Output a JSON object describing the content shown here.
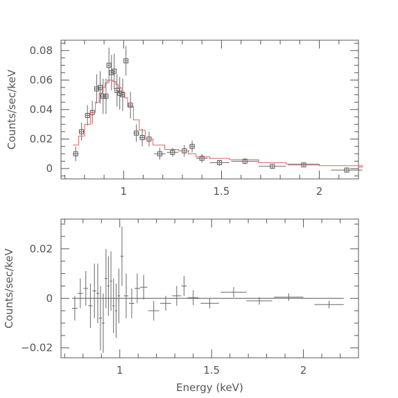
{
  "chart_data": [
    {
      "type": "scatter",
      "title": "",
      "xlabel": "",
      "ylabel": "Counts/sec/keV",
      "xlim": [
        0.68,
        2.2
      ],
      "ylim": [
        -0.007,
        0.087
      ],
      "x_major_ticks": [
        1,
        1.5,
        2
      ],
      "x_tick_labels": [
        "1",
        "1.5",
        "2"
      ],
      "y_major_ticks": [
        0,
        0.02,
        0.04,
        0.06,
        0.08
      ],
      "y_tick_labels": [
        "0",
        "0.02",
        "0.04",
        "0.06",
        "0.08"
      ],
      "grid": false,
      "model_color": "#e06060",
      "series": [
        {
          "marker": "square",
          "points": [
            {
              "x": 0.755,
              "y": 0.01,
              "xerr": 0.015,
              "yerr": 0.005
            },
            {
              "x": 0.785,
              "y": 0.025,
              "xerr": 0.015,
              "yerr": 0.006
            },
            {
              "x": 0.815,
              "y": 0.036,
              "xerr": 0.012,
              "yerr": 0.007
            },
            {
              "x": 0.84,
              "y": 0.038,
              "xerr": 0.012,
              "yerr": 0.008
            },
            {
              "x": 0.862,
              "y": 0.054,
              "xerr": 0.01,
              "yerr": 0.01
            },
            {
              "x": 0.88,
              "y": 0.055,
              "xerr": 0.008,
              "yerr": 0.011
            },
            {
              "x": 0.895,
              "y": 0.049,
              "xerr": 0.008,
              "yerr": 0.012
            },
            {
              "x": 0.91,
              "y": 0.049,
              "xerr": 0.007,
              "yerr": 0.012
            },
            {
              "x": 0.925,
              "y": 0.07,
              "xerr": 0.007,
              "yerr": 0.012
            },
            {
              "x": 0.938,
              "y": 0.065,
              "xerr": 0.006,
              "yerr": 0.012
            },
            {
              "x": 0.952,
              "y": 0.066,
              "xerr": 0.006,
              "yerr": 0.012
            },
            {
              "x": 0.966,
              "y": 0.053,
              "xerr": 0.006,
              "yerr": 0.011
            },
            {
              "x": 0.98,
              "y": 0.051,
              "xerr": 0.006,
              "yerr": 0.011
            },
            {
              "x": 0.995,
              "y": 0.05,
              "xerr": 0.007,
              "yerr": 0.011
            },
            {
              "x": 1.012,
              "y": 0.073,
              "xerr": 0.008,
              "yerr": 0.01
            },
            {
              "x": 1.035,
              "y": 0.043,
              "xerr": 0.012,
              "yerr": 0.009
            },
            {
              "x": 1.065,
              "y": 0.024,
              "xerr": 0.015,
              "yerr": 0.006
            },
            {
              "x": 1.095,
              "y": 0.021,
              "xerr": 0.015,
              "yerr": 0.006
            },
            {
              "x": 1.13,
              "y": 0.02,
              "xerr": 0.02,
              "yerr": 0.005
            },
            {
              "x": 1.185,
              "y": 0.01,
              "xerr": 0.03,
              "yerr": 0.004
            },
            {
              "x": 1.25,
              "y": 0.011,
              "xerr": 0.03,
              "yerr": 0.003
            },
            {
              "x": 1.31,
              "y": 0.012,
              "xerr": 0.025,
              "yerr": 0.004
            },
            {
              "x": 1.35,
              "y": 0.015,
              "xerr": 0.015,
              "yerr": 0.004
            },
            {
              "x": 1.4,
              "y": 0.007,
              "xerr": 0.03,
              "yerr": 0.003
            },
            {
              "x": 1.49,
              "y": 0.004,
              "xerr": 0.05,
              "yerr": 0.002
            },
            {
              "x": 1.62,
              "y": 0.005,
              "xerr": 0.07,
              "yerr": 0.002
            },
            {
              "x": 1.76,
              "y": 0.0015,
              "xerr": 0.07,
              "yerr": 0.0015
            },
            {
              "x": 1.92,
              "y": 0.0025,
              "xerr": 0.08,
              "yerr": 0.0015
            },
            {
              "x": 2.14,
              "y": -0.001,
              "xerr": 0.08,
              "yerr": 0.0015
            }
          ]
        }
      ],
      "model_step": [
        [
          0.74,
          0.016
        ],
        [
          0.77,
          0.022
        ],
        [
          0.8,
          0.03
        ],
        [
          0.83,
          0.038
        ],
        [
          0.855,
          0.045
        ],
        [
          0.875,
          0.051
        ],
        [
          0.89,
          0.055
        ],
        [
          0.905,
          0.058
        ],
        [
          0.918,
          0.06
        ],
        [
          0.932,
          0.06
        ],
        [
          0.945,
          0.059
        ],
        [
          0.96,
          0.057
        ],
        [
          0.973,
          0.055
        ],
        [
          0.988,
          0.052
        ],
        [
          1.003,
          0.048
        ],
        [
          1.02,
          0.042
        ],
        [
          1.05,
          0.033
        ],
        [
          1.08,
          0.026
        ],
        [
          1.11,
          0.02
        ],
        [
          1.15,
          0.016
        ],
        [
          1.21,
          0.013
        ],
        [
          1.28,
          0.012
        ],
        [
          1.33,
          0.01
        ],
        [
          1.37,
          0.008
        ],
        [
          1.44,
          0.007
        ],
        [
          1.54,
          0.006
        ],
        [
          1.69,
          0.004
        ],
        [
          1.83,
          0.003
        ],
        [
          2.0,
          0.002
        ],
        [
          2.22,
          0.001
        ]
      ]
    },
    {
      "type": "scatter",
      "title": "",
      "xlabel": "Energy (keV)",
      "ylabel": "Counts/sec/keV",
      "xlim": [
        0.68,
        2.3
      ],
      "ylim": [
        -0.024,
        0.032
      ],
      "x_major_ticks": [
        1,
        1.5,
        2
      ],
      "x_tick_labels": [
        "1",
        "1.5",
        "2"
      ],
      "y_major_ticks": [
        -0.02,
        0,
        0.02
      ],
      "y_tick_labels": [
        "−0.02",
        "0",
        "0.02"
      ],
      "grid": false,
      "series": [
        {
          "marker": "cross",
          "points": [
            {
              "x": 0.755,
              "y": -0.004,
              "xerr": 0.015,
              "yerr": 0.005
            },
            {
              "x": 0.785,
              "y": 0.002,
              "xerr": 0.015,
              "yerr": 0.006
            },
            {
              "x": 0.815,
              "y": 0.004,
              "xerr": 0.012,
              "yerr": 0.007
            },
            {
              "x": 0.84,
              "y": -0.003,
              "xerr": 0.012,
              "yerr": 0.009
            },
            {
              "x": 0.862,
              "y": 0.003,
              "xerr": 0.01,
              "yerr": 0.011
            },
            {
              "x": 0.88,
              "y": 0.002,
              "xerr": 0.008,
              "yerr": 0.012
            },
            {
              "x": 0.895,
              "y": -0.008,
              "xerr": 0.008,
              "yerr": 0.013
            },
            {
              "x": 0.91,
              "y": -0.01,
              "xerr": 0.007,
              "yerr": 0.012
            },
            {
              "x": 0.925,
              "y": 0.008,
              "xerr": 0.007,
              "yerr": 0.012
            },
            {
              "x": 0.938,
              "y": 0.005,
              "xerr": 0.006,
              "yerr": 0.012
            },
            {
              "x": 0.952,
              "y": 0.007,
              "xerr": 0.006,
              "yerr": 0.012
            },
            {
              "x": 0.966,
              "y": -0.003,
              "xerr": 0.006,
              "yerr": 0.011
            },
            {
              "x": 0.98,
              "y": -0.005,
              "xerr": 0.006,
              "yerr": 0.011
            },
            {
              "x": 0.995,
              "y": 0.001,
              "xerr": 0.007,
              "yerr": 0.011
            },
            {
              "x": 1.012,
              "y": 0.017,
              "xerr": 0.008,
              "yerr": 0.012
            },
            {
              "x": 1.035,
              "y": 0.001,
              "xerr": 0.012,
              "yerr": 0.009
            },
            {
              "x": 1.065,
              "y": -0.002,
              "xerr": 0.015,
              "yerr": 0.006
            },
            {
              "x": 1.095,
              "y": 0.004,
              "xerr": 0.015,
              "yerr": 0.006
            },
            {
              "x": 1.13,
              "y": 0.0045,
              "xerr": 0.02,
              "yerr": 0.005
            },
            {
              "x": 1.185,
              "y": -0.005,
              "xerr": 0.03,
              "yerr": 0.004
            },
            {
              "x": 1.25,
              "y": -0.002,
              "xerr": 0.03,
              "yerr": 0.003
            },
            {
              "x": 1.31,
              "y": 0.001,
              "xerr": 0.025,
              "yerr": 0.004
            },
            {
              "x": 1.35,
              "y": 0.005,
              "xerr": 0.015,
              "yerr": 0.004
            },
            {
              "x": 1.4,
              "y": 0.0003,
              "xerr": 0.03,
              "yerr": 0.003
            },
            {
              "x": 1.49,
              "y": -0.002,
              "xerr": 0.05,
              "yerr": 0.002
            },
            {
              "x": 1.62,
              "y": 0.0025,
              "xerr": 0.07,
              "yerr": 0.002
            },
            {
              "x": 1.76,
              "y": -0.001,
              "xerr": 0.07,
              "yerr": 0.0015
            },
            {
              "x": 1.92,
              "y": 0.0005,
              "xerr": 0.08,
              "yerr": 0.0015
            },
            {
              "x": 2.14,
              "y": -0.0025,
              "xerr": 0.08,
              "yerr": 0.0015
            }
          ]
        }
      ],
      "reference_line_y": 0,
      "reference_line_xrange": [
        0.74,
        2.22
      ]
    }
  ]
}
